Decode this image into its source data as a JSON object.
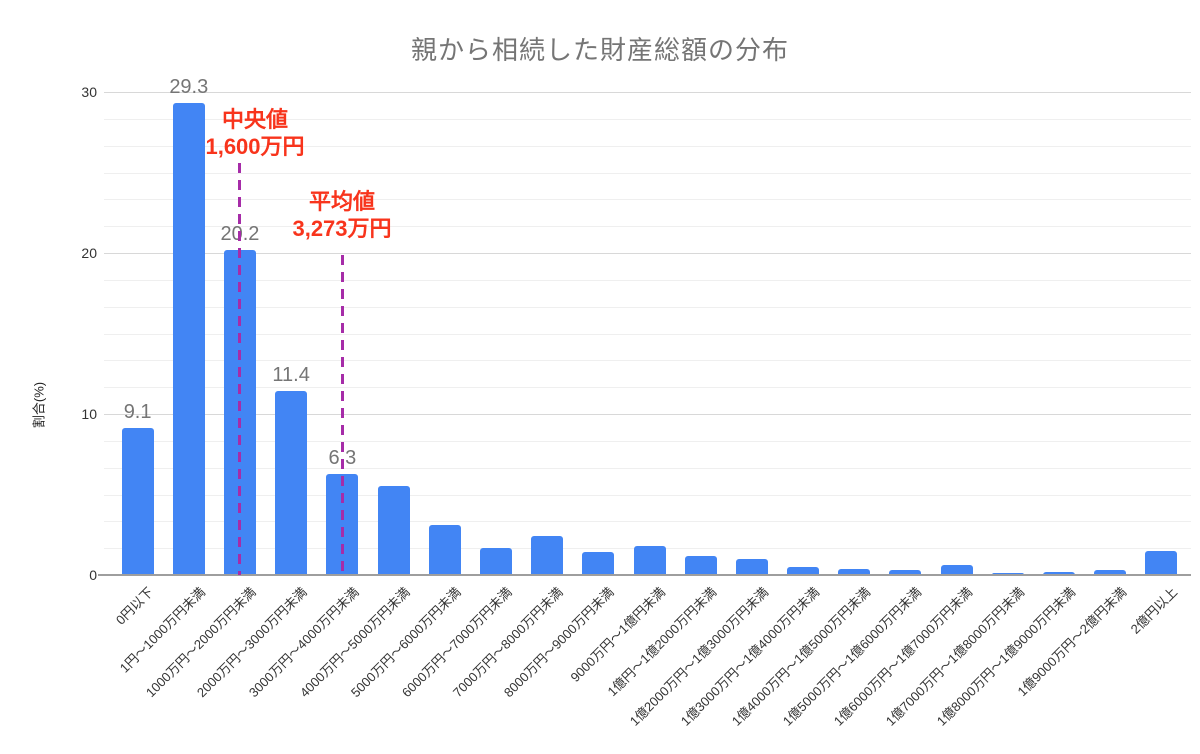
{
  "chart_data": {
    "type": "bar",
    "title": "親から相続した財産総額の分布",
    "ylabel": "割合(%)",
    "ylim": [
      0,
      30
    ],
    "yticks": [
      "0",
      "10",
      "20",
      "30"
    ],
    "minor_gridlines_per_major": 6,
    "grid": true,
    "legend_position": "none",
    "categories": [
      "0円以下",
      "1円〜1000万円未満",
      "1000万円〜2000万円未満",
      "2000万円〜3000万円未満",
      "3000万円〜4000万円未満",
      "4000万円〜5000万円未満",
      "5000万円〜6000万円未満",
      "6000万円〜7000万円未満",
      "7000万円〜8000万円未満",
      "8000万円〜9000万円未満",
      "9000万円〜1億円未満",
      "1億円〜1億2000万円未満",
      "1億2000万円〜1億3000万円未満",
      "1億3000万円〜1億4000万円未満",
      "1億4000万円〜1億5000万円未満",
      "1億5000万円〜1億6000万円未満",
      "1億6000万円〜1億7000万円未満",
      "1億7000万円〜1億8000万円未満",
      "1億8000万円〜1億9000万円未満",
      "1億9000万円〜2億円未満",
      "2億円以上"
    ],
    "values": [
      9.1,
      29.3,
      20.2,
      11.4,
      6.3,
      5.5,
      3.1,
      1.7,
      2.4,
      1.4,
      1.8,
      1.2,
      1.0,
      0.5,
      0.4,
      0.3,
      0.6,
      0.1,
      0.2,
      0.3,
      1.5
    ],
    "data_labels": [
      {
        "index": 0,
        "text": "9.1"
      },
      {
        "index": 1,
        "text": "29.3"
      },
      {
        "index": 2,
        "text": "20.2"
      },
      {
        "index": 3,
        "text": "11.4"
      },
      {
        "index": 4,
        "text": "6.3"
      }
    ],
    "annotations": [
      {
        "name": "median",
        "label": "中央値",
        "value_text": "1,600万円",
        "category_index": 2
      },
      {
        "name": "mean",
        "label": "平均値",
        "value_text": "3,273万円",
        "category_index": 4
      }
    ],
    "colors": {
      "bar": "#4285F4",
      "annotation_text": "#F8341C",
      "annotation_line": "#A62CA8",
      "title": "#757575",
      "data_label": "#757575",
      "axis_text": "#333333",
      "grid_major": "#D8D8D8",
      "grid_minor": "#EFEFEF",
      "axis_line": "#9E9E9E",
      "background": "#FFFFFF"
    }
  }
}
